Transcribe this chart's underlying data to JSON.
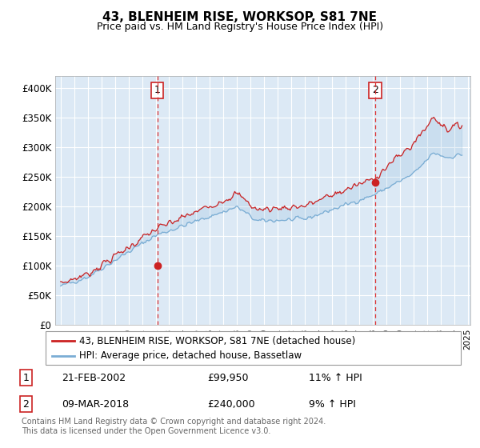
{
  "title": "43, BLENHEIM RISE, WORKSOP, S81 7NE",
  "subtitle": "Price paid vs. HM Land Registry's House Price Index (HPI)",
  "bg_color": "#dce9f5",
  "plot_bg_color": "#dce9f5",
  "line1_color": "#cc2222",
  "line2_color": "#7aadd4",
  "line1_label": "43, BLENHEIM RISE, WORKSOP, S81 7NE (detached house)",
  "line2_label": "HPI: Average price, detached house, Bassetlaw",
  "yticks": [
    0,
    50000,
    100000,
    150000,
    200000,
    250000,
    300000,
    350000,
    400000
  ],
  "ytick_labels": [
    "£0",
    "£50K",
    "£100K",
    "£150K",
    "£200K",
    "£250K",
    "£300K",
    "£350K",
    "£400K"
  ],
  "sale1_date": "21-FEB-2002",
  "sale1_price": 99950,
  "sale1_price_str": "£99,950",
  "sale1_hpi": "11% ↑ HPI",
  "sale1_x": 2002.13,
  "sale1_y": 99950,
  "sale2_date": "09-MAR-2018",
  "sale2_price": 240000,
  "sale2_price_str": "£240,000",
  "sale2_hpi": "9% ↑ HPI",
  "sale2_x": 2018.19,
  "sale2_y": 240000,
  "footer": "Contains HM Land Registry data © Crown copyright and database right 2024.\nThis data is licensed under the Open Government Licence v3.0.",
  "xlim_left": 1994.6,
  "xlim_right": 2025.2,
  "ylim_top": 420000,
  "ylim_bottom": 0,
  "noise_seed_hpi": 42,
  "noise_seed_price": 7
}
